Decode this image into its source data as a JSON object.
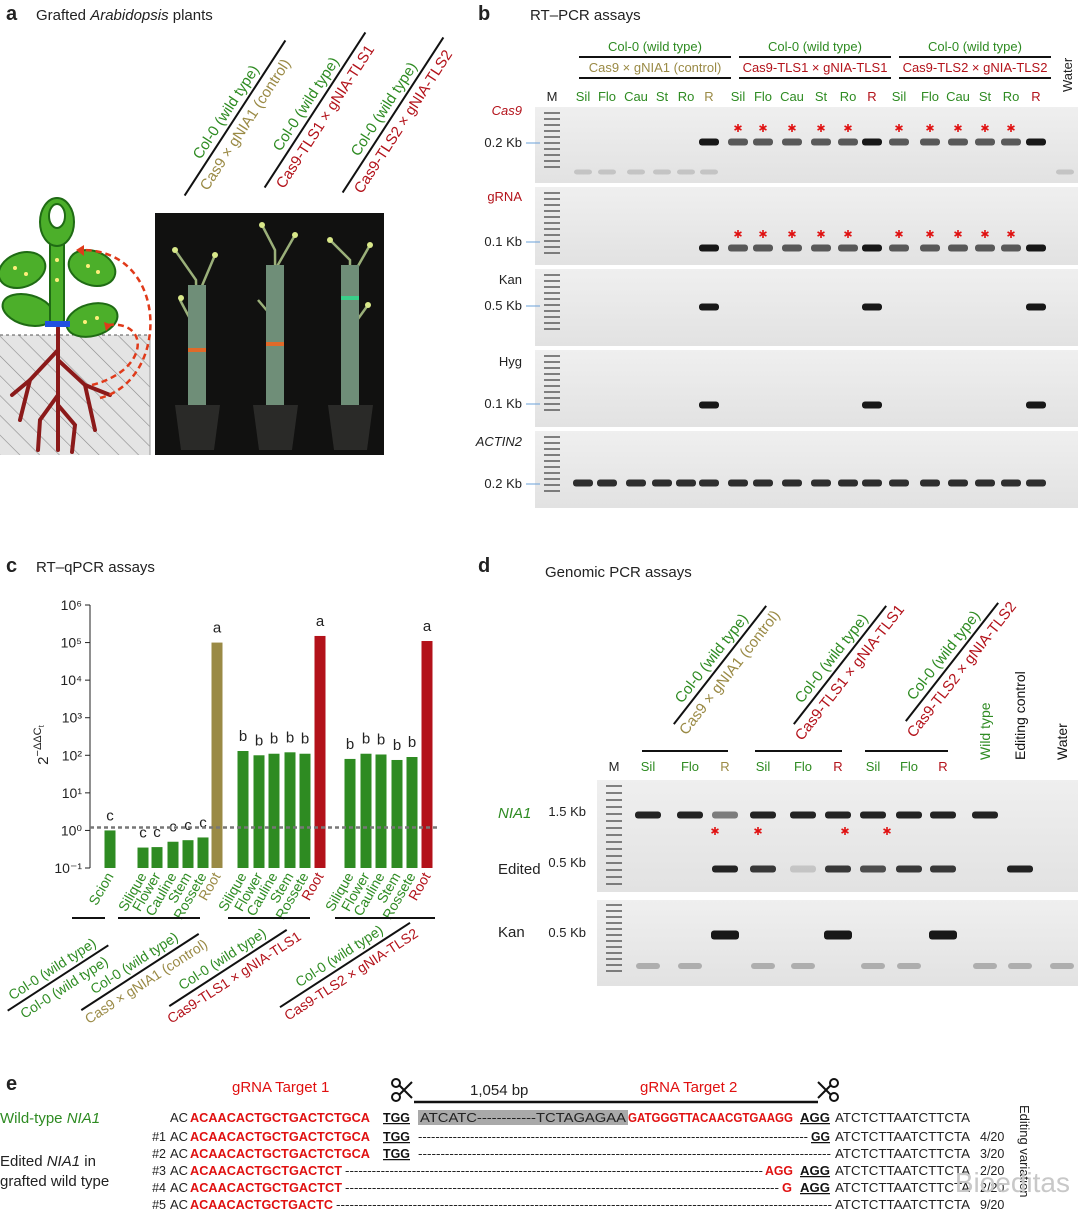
{
  "panel_a": {
    "letter": "a",
    "title_prefix": "Grafted ",
    "title_italic": "Arabidopsis",
    "title_suffix": " plants",
    "groups": [
      {
        "top": "Col-0 (wild type)",
        "bottom": "Cas9 × gNIA1 (control)",
        "top_color": "#2e8b22",
        "bottom_color": "#9a8a45"
      },
      {
        "top": "Col-0 (wild type)",
        "bottom": "Cas9-TLS1 × gNIA-TLS1",
        "top_color": "#2e8b22",
        "bottom_color": "#b3121a"
      },
      {
        "top": "Col-0 (wild type)",
        "bottom": "Cas9-TLS2 × gNIA-TLS2",
        "top_color": "#2e8b22",
        "bottom_color": "#b3121a"
      }
    ]
  },
  "panel_b": {
    "letter": "b",
    "title": "RT–PCR assays",
    "marker": "M",
    "water": "Water",
    "groups": [
      {
        "top": "Col-0 (wild type)",
        "bottom": "Cas9 × gNIA1 (control)",
        "top_color": "#2e8b22",
        "bottom_color": "#9a8a45"
      },
      {
        "top": "Col-0 (wild type)",
        "bottom": "Cas9-TLS1 × gNIA-TLS1",
        "top_color": "#2e8b22",
        "bottom_color": "#b3121a"
      },
      {
        "top": "Col-0 (wild type)",
        "bottom": "Cas9-TLS2 × gNIA-TLS2",
        "top_color": "#2e8b22",
        "bottom_color": "#b3121a"
      }
    ],
    "lanes": [
      [
        "Sil",
        "Flo",
        "Cau",
        "St",
        "Ro",
        "R"
      ],
      [
        "Sil",
        "Flo",
        "Cau",
        "St",
        "Ro",
        "R"
      ],
      [
        "Sil",
        "Flo",
        "Cau",
        "St",
        "Ro",
        "R"
      ]
    ],
    "rows": [
      {
        "gene": "Cas9",
        "size": "0.2 Kb",
        "color": "#b3121a",
        "italic": true
      },
      {
        "gene": "gRNA",
        "size": "0.1 Kb",
        "color": "#b3121a",
        "italic": false
      },
      {
        "gene": "Kan",
        "size": "0.5 Kb",
        "color": "#222222",
        "italic": false
      },
      {
        "gene": "Hyg",
        "size": "0.1 Kb",
        "color": "#222222",
        "italic": false
      },
      {
        "gene": "ACTIN2",
        "size": "0.2 Kb",
        "color": "#222222",
        "italic": true
      }
    ]
  },
  "chart_data": {
    "type": "bar",
    "panel_label": "c",
    "title": "RT–qPCR assays",
    "y_label": {
      "base": "2",
      "exponent": "−ΔΔC",
      "subscript": "t"
    },
    "categories": [
      "Scion",
      "Silique",
      "Flower",
      "Cauline",
      "Stem",
      "Rossete",
      "Root",
      "Silique",
      "Flower",
      "Cauline",
      "Stem",
      "Rossete",
      "Root",
      "Silique",
      "Flower",
      "Cauline",
      "Stem",
      "Rossete",
      "Root"
    ],
    "values": [
      1.0,
      0.35,
      0.36,
      0.5,
      0.55,
      0.65,
      100000,
      130,
      100,
      110,
      120,
      110,
      150000,
      80,
      110,
      105,
      75,
      90,
      110000
    ],
    "colors": [
      "#2e8b22",
      "#2e8b22",
      "#2e8b22",
      "#2e8b22",
      "#2e8b22",
      "#2e8b22",
      "#9a8a45",
      "#2e8b22",
      "#2e8b22",
      "#2e8b22",
      "#2e8b22",
      "#2e8b22",
      "#b3121a",
      "#2e8b22",
      "#2e8b22",
      "#2e8b22",
      "#2e8b22",
      "#2e8b22",
      "#b3121a"
    ],
    "annotations": [
      "c",
      "c",
      "c",
      "c",
      "c",
      "c",
      "a",
      "b",
      "b",
      "b",
      "b",
      "b",
      "a",
      "b",
      "b",
      "b",
      "b",
      "b",
      "a"
    ],
    "log_scale": true,
    "grid": false,
    "reference_line": 1.2,
    "ylim": [
      0.1,
      1000000
    ],
    "yticks": [
      {
        "value": 0.1,
        "label": "10⁻¹"
      },
      {
        "value": 1,
        "label": "10⁰"
      },
      {
        "value": 10,
        "label": "10¹"
      },
      {
        "value": 100,
        "label": "10²"
      },
      {
        "value": 1000,
        "label": "10³"
      },
      {
        "value": 10000,
        "label": "10⁴"
      },
      {
        "value": 100000,
        "label": "10⁵"
      },
      {
        "value": 1000000,
        "label": "10⁶"
      }
    ],
    "groups": [
      {
        "top": "Col-0 (wild type)",
        "bottom": "Col-0 (wild type)",
        "top_color": "#2e8b22",
        "bottom_color": "#2e8b22"
      },
      {
        "top": "Col-0 (wild type)",
        "bottom": "Cas9 × gNIA1 (control)",
        "top_color": "#2e8b22",
        "bottom_color": "#9a8a45"
      },
      {
        "top": "Col-0 (wild type)",
        "bottom": "Cas9-TLS1 × gNIA-TLS1",
        "top_color": "#2e8b22",
        "bottom_color": "#b3121a"
      },
      {
        "top": "Col-0 (wild type)",
        "bottom": "Cas9-TLS2 × gNIA-TLS2",
        "top_color": "#2e8b22",
        "bottom_color": "#b3121a"
      }
    ]
  },
  "panel_d": {
    "letter": "d",
    "title": "Genomic PCR assays",
    "marker": "M",
    "groups": [
      {
        "top": "Col-0 (wild type)",
        "bottom": "Cas9 × gNIA1 (control)",
        "top_color": "#2e8b22",
        "bottom_color": "#9a8a45"
      },
      {
        "top": "Col-0 (wild type)",
        "bottom": "Cas9-TLS1 × gNIA-TLS1",
        "top_color": "#2e8b22",
        "bottom_color": "#b3121a"
      },
      {
        "top": "Col-0 (wild type)",
        "bottom": "Cas9-TLS2 × gNIA-TLS2",
        "top_color": "#2e8b22",
        "bottom_color": "#b3121a"
      }
    ],
    "lanes": [
      [
        "Sil",
        "Flo",
        "R"
      ],
      [
        "Sil",
        "Flo",
        "R"
      ],
      [
        "Sil",
        "Flo",
        "R"
      ]
    ],
    "extra_lanes": [
      {
        "text": "Wild type",
        "color": "#2e8b22"
      },
      {
        "text": "Editing control",
        "color": "#111111"
      },
      {
        "text": "Water",
        "color": "#111111"
      }
    ],
    "rows": [
      {
        "gene": "NIA1",
        "size": "1.5 Kb",
        "color": "#2e8b22",
        "italic": true
      },
      {
        "gene": "Edited",
        "size": "0.5 Kb",
        "color": "#222222",
        "italic": false
      },
      {
        "gene": "Kan",
        "size": "0.5 Kb",
        "color": "#222222",
        "italic": false
      }
    ]
  },
  "panel_e": {
    "letter": "e",
    "target1": "gRNA Target 1",
    "distance": "1,054 bp",
    "target2": "gRNA Target 2",
    "wt_label": {
      "prefix": "Wild-type ",
      "gene": "NIA1"
    },
    "edited_label": {
      "prefix": "Edited ",
      "gene": "NIA1",
      "suffix": " in",
      "line2": "grafted wild type"
    },
    "column_header": "Editing variation",
    "wild_type": [
      {
        "text": "AC",
        "style": "plain"
      },
      {
        "text": "ACAACACTGCTGACTCTGCA",
        "style": "target"
      },
      {
        "text": "TGG",
        "style": "pam"
      },
      {
        "text": "ATCATC------------TCTAGAGAA",
        "style": "gray"
      },
      {
        "text": "GATGGGTTACAACGTGAAGG",
        "style": "target"
      },
      {
        "text": "AGG",
        "style": "pam"
      },
      {
        "text": "ATCTCTTAATCTTCTA",
        "style": "plain"
      }
    ],
    "variants": [
      {
        "id": "#1",
        "fraction": "4/20",
        "segments": [
          {
            "text": "AC",
            "style": "plain"
          },
          {
            "text": "ACAACACTGCTGACTCTGCA",
            "style": "target"
          },
          {
            "text": "TGG",
            "style": "pam"
          },
          {
            "text": "------------------------------------------------------------------------------------------",
            "style": "dash"
          },
          {
            "text": "GG",
            "style": "pam"
          },
          {
            "text": "ATCTCTTAATCTTCTA",
            "style": "plain"
          }
        ]
      },
      {
        "id": "#2",
        "fraction": "3/20",
        "segments": [
          {
            "text": "AC",
            "style": "plain"
          },
          {
            "text": "ACAACACTGCTGACTCTGCA",
            "style": "target"
          },
          {
            "text": "TGG",
            "style": "pam"
          },
          {
            "text": "--------------------------------------------------------------------------------------------",
            "style": "dash"
          },
          {
            "text": "ATCTCTTAATCTTCTA",
            "style": "plain"
          }
        ]
      },
      {
        "id": "#3",
        "fraction": "2/20",
        "segments": [
          {
            "text": "AC",
            "style": "plain"
          },
          {
            "text": "ACAACACTGCTGACTCT",
            "style": "target"
          },
          {
            "text": "----------------------------------------------------------------------------------------------",
            "style": "dash"
          },
          {
            "text": "AGG",
            "style": "target"
          },
          {
            "text": "AGG",
            "style": "pam"
          },
          {
            "text": "ATCTCTTAATCTTCTA",
            "style": "plain"
          }
        ]
      },
      {
        "id": "#4",
        "fraction": "2/20",
        "segments": [
          {
            "text": "AC",
            "style": "plain"
          },
          {
            "text": "ACAACACTGCTGACTCT",
            "style": "target"
          },
          {
            "text": "-------------------------------------------------------------------------------------------------",
            "style": "dash"
          },
          {
            "text": "G",
            "style": "target"
          },
          {
            "text": "AGG",
            "style": "pam"
          },
          {
            "text": "ATCTCTTAATCTTCTA",
            "style": "plain"
          }
        ]
      },
      {
        "id": "#5",
        "fraction": "9/20",
        "segments": [
          {
            "text": "AC",
            "style": "plain"
          },
          {
            "text": "ACAACACTGCTGACTC",
            "style": "target"
          },
          {
            "text": "--------------------------------------------------------------------------------------------------------------",
            "style": "dash"
          },
          {
            "text": "ATCTCTTAATCTTCTA",
            "style": "plain"
          }
        ]
      }
    ]
  },
  "watermark": "Bioeditas"
}
